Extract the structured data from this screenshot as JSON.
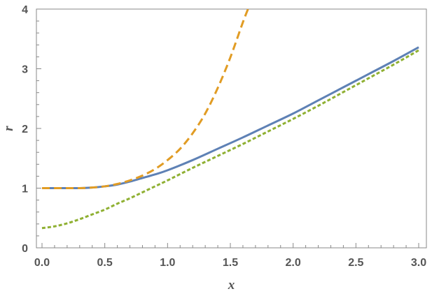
{
  "chart_data": {
    "type": "line",
    "title": "",
    "xlabel": "x",
    "ylabel": "r",
    "xlim": [
      0.0,
      3.0
    ],
    "ylim": [
      0,
      4
    ],
    "x_ticks": [
      "0.0",
      "0.5",
      "1.0",
      "1.5",
      "2.0",
      "2.5",
      "3.0"
    ],
    "y_ticks": [
      "0",
      "1",
      "2",
      "3",
      "4"
    ],
    "grid": false,
    "legend": "none",
    "series": [
      {
        "color": "#5E81B5",
        "style": "solid",
        "x": [
          0.0,
          0.1,
          0.2,
          0.3,
          0.4,
          0.5,
          0.6,
          0.7,
          0.8,
          0.9,
          1.0,
          1.2,
          1.4,
          1.6,
          1.8,
          2.0,
          2.2,
          2.4,
          2.6,
          2.8,
          3.0
        ],
        "y": [
          1.0,
          1.0,
          1.0,
          1.0,
          1.01,
          1.03,
          1.06,
          1.11,
          1.17,
          1.23,
          1.3,
          1.47,
          1.66,
          1.85,
          2.05,
          2.25,
          2.47,
          2.69,
          2.91,
          3.13,
          3.36
        ]
      },
      {
        "color": "#E19C24",
        "style": "dashed",
        "x": [
          0.0,
          0.1,
          0.2,
          0.3,
          0.4,
          0.5,
          0.6,
          0.7,
          0.8,
          0.9,
          1.0,
          1.1,
          1.2,
          1.3,
          1.4,
          1.5,
          1.6,
          1.65
        ],
        "y": [
          1.0,
          1.0,
          1.0,
          1.0,
          1.01,
          1.03,
          1.07,
          1.13,
          1.21,
          1.32,
          1.47,
          1.66,
          1.92,
          2.25,
          2.68,
          3.19,
          3.78,
          4.05
        ]
      },
      {
        "color": "#8FB032",
        "style": "dotted-dash",
        "x": [
          0.0,
          0.1,
          0.2,
          0.3,
          0.4,
          0.5,
          0.6,
          0.7,
          0.8,
          0.9,
          1.0,
          1.2,
          1.4,
          1.6,
          1.8,
          2.0,
          2.2,
          2.4,
          2.6,
          2.8,
          3.0
        ],
        "y": [
          0.33,
          0.36,
          0.41,
          0.48,
          0.56,
          0.64,
          0.74,
          0.83,
          0.93,
          1.03,
          1.13,
          1.34,
          1.54,
          1.74,
          1.95,
          2.16,
          2.38,
          2.61,
          2.84,
          3.07,
          3.31
        ]
      }
    ]
  }
}
